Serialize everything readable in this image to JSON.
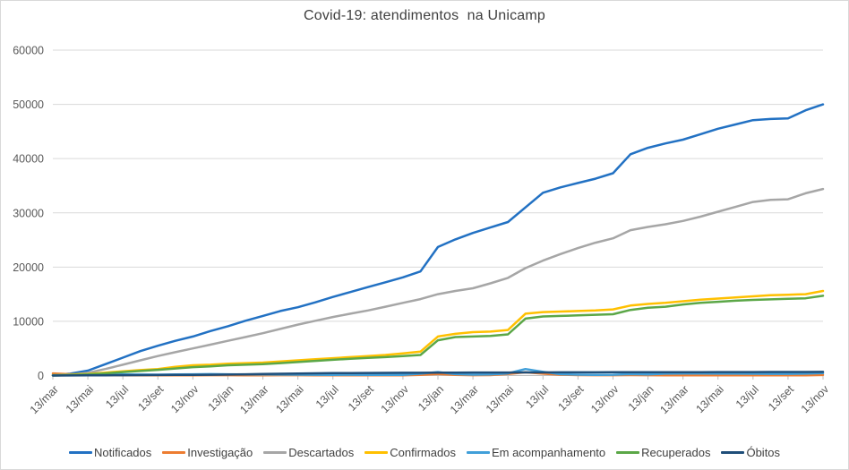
{
  "chart_data": {
    "type": "line",
    "title": "Covid-19: atendimentos  na Unicamp",
    "xlabel": "",
    "ylabel": "",
    "ylim": [
      0,
      60000
    ],
    "y_tick_step": 10000,
    "y_tick_labels": [
      "0",
      "10000",
      "20000",
      "30000",
      "40000",
      "50000",
      "60000"
    ],
    "grid": "horizontal",
    "legend_position": "bottom",
    "x_tick_every": 2,
    "x_tick_labels": [
      "13/mar",
      "13/mai",
      "13/jul",
      "13/set",
      "13/nov",
      "13/jan",
      "13/mar",
      "13/mai",
      "13/jul",
      "13/set",
      "13/nov",
      "13/jan",
      "13/mar",
      "13/mai",
      "13/jul",
      "13/set",
      "13/nov",
      "13/jan",
      "13/mar",
      "13/mai",
      "13/jul",
      "13/set",
      "13/nov"
    ],
    "series": [
      {
        "name": "Notificados",
        "color": "#2271C3",
        "values": [
          100,
          350,
          900,
          2100,
          3300,
          4500,
          5500,
          6400,
          7200,
          8200,
          9100,
          10100,
          11000,
          11900,
          12600,
          13500,
          14500,
          15400,
          16300,
          17200,
          18100,
          19200,
          23700,
          25100,
          26300,
          27300,
          28300,
          31000,
          33700,
          34700,
          35500,
          36300,
          37300,
          40800,
          42000,
          42800,
          43500,
          44500,
          45500,
          46300,
          47100,
          47300,
          47400,
          48900,
          50000
        ]
      },
      {
        "name": "Investigação",
        "color": "#ED7D31",
        "values": [
          400,
          250,
          120,
          60,
          50,
          40,
          40,
          40,
          50,
          60,
          60,
          50,
          50,
          60,
          60,
          50,
          40,
          40,
          30,
          30,
          40,
          120,
          300,
          120,
          60,
          80,
          300,
          600,
          350,
          150,
          80,
          60,
          60,
          80,
          60,
          50,
          50,
          50,
          50,
          40,
          40,
          40,
          40,
          50,
          100
        ]
      },
      {
        "name": "Descartados",
        "color": "#A6A6A6",
        "values": [
          50,
          150,
          500,
          1200,
          2000,
          2800,
          3600,
          4300,
          5000,
          5700,
          6400,
          7100,
          7800,
          8600,
          9400,
          10100,
          10800,
          11400,
          12000,
          12700,
          13400,
          14100,
          15000,
          15600,
          16100,
          17000,
          18000,
          19800,
          21200,
          22400,
          23500,
          24500,
          25300,
          26800,
          27400,
          27900,
          28500,
          29300,
          30200,
          31100,
          32000,
          32400,
          32500,
          33600,
          34400
        ]
      },
      {
        "name": "Confirmados",
        "color": "#FFC000",
        "values": [
          100,
          200,
          300,
          550,
          800,
          1000,
          1200,
          1600,
          1900,
          2000,
          2200,
          2300,
          2400,
          2600,
          2800,
          3000,
          3200,
          3400,
          3600,
          3800,
          4100,
          4400,
          7200,
          7700,
          8000,
          8100,
          8400,
          11400,
          11700,
          11800,
          11900,
          12000,
          12200,
          12900,
          13200,
          13400,
          13700,
          14000,
          14200,
          14400,
          14600,
          14800,
          14900,
          15000,
          15600
        ]
      },
      {
        "name": "Em acompanhamento",
        "color": "#419FD9",
        "values": [
          60,
          140,
          120,
          160,
          200,
          180,
          160,
          190,
          230,
          260,
          230,
          190,
          200,
          180,
          160,
          150,
          140,
          150,
          130,
          120,
          140,
          350,
          650,
          260,
          160,
          200,
          400,
          1200,
          700,
          250,
          160,
          140,
          150,
          260,
          220,
          350,
          380,
          360,
          350,
          340,
          330,
          320,
          320,
          350,
          450
        ]
      },
      {
        "name": "Recuperados",
        "color": "#5BA747",
        "values": [
          0,
          80,
          200,
          400,
          650,
          850,
          1050,
          1300,
          1550,
          1700,
          1900,
          2000,
          2100,
          2300,
          2500,
          2700,
          2900,
          3100,
          3250,
          3400,
          3600,
          3800,
          6500,
          7100,
          7200,
          7300,
          7600,
          10500,
          10900,
          11000,
          11100,
          11200,
          11300,
          12100,
          12500,
          12700,
          13100,
          13400,
          13600,
          13800,
          13950,
          14050,
          14150,
          14250,
          14700
        ]
      },
      {
        "name": "Óbitos",
        "color": "#1F4E79",
        "values": [
          0,
          10,
          30,
          50,
          70,
          90,
          105,
          120,
          135,
          155,
          185,
          225,
          275,
          330,
          380,
          420,
          450,
          470,
          485,
          495,
          505,
          515,
          530,
          545,
          555,
          560,
          565,
          575,
          585,
          590,
          595,
          600,
          605,
          615,
          620,
          625,
          630,
          635,
          640,
          645,
          650,
          655,
          658,
          662,
          670
        ]
      }
    ]
  },
  "colors": {
    "background": "#FFFFFF",
    "frame_border": "#D9D9D9",
    "gridline": "#D9D9D9",
    "axis_line": "#BFBFBF",
    "tick_text": "#595959",
    "title_text": "#3F3F3F",
    "legend_text": "#404040"
  }
}
